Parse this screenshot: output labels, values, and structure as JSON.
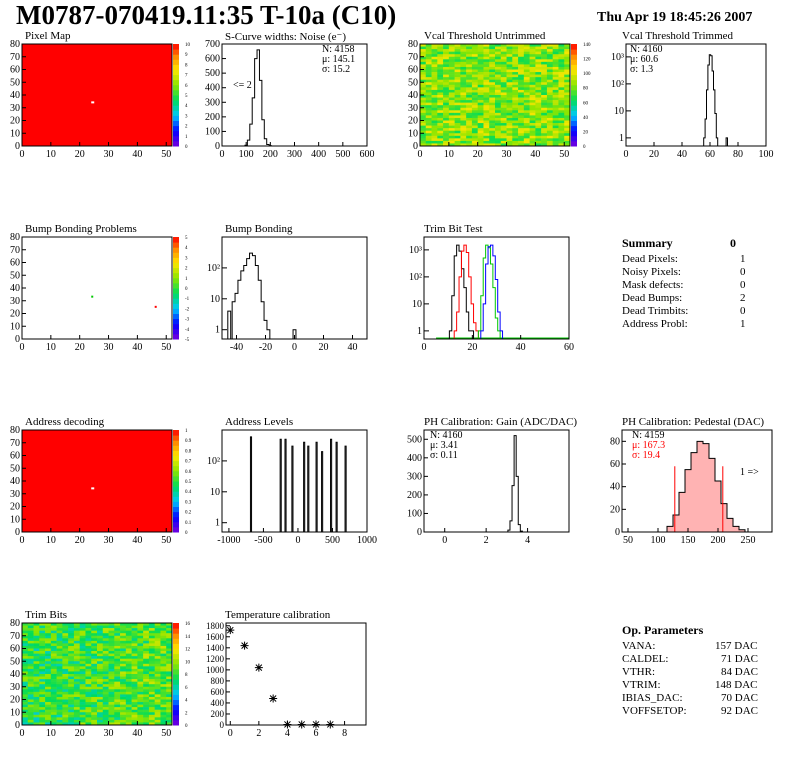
{
  "header": {
    "title": "M0787-070419.11:35 T-10a (C10)",
    "date": "Thu Apr 19 18:45:26 2007"
  },
  "panels": {
    "pixel_map": {
      "title": "Pixel Map",
      "xticks": [
        "0",
        "10",
        "20",
        "30",
        "40",
        "50"
      ],
      "yticks": [
        "0",
        "10",
        "20",
        "30",
        "40",
        "50",
        "60",
        "70",
        "80"
      ],
      "zticks": [
        "0",
        "1",
        "2",
        "3",
        "4",
        "5",
        "6",
        "7",
        "8",
        "9",
        "10"
      ]
    },
    "scurve": {
      "title": "S-Curve widths: Noise (e⁻)",
      "stats": [
        "N: 4158",
        "μ: 145.1",
        "σ: 15.2"
      ],
      "note": "<= 2",
      "xticks": [
        "0",
        "100",
        "200",
        "300",
        "400",
        "500",
        "600"
      ],
      "yticks": [
        "0",
        "100",
        "200",
        "300",
        "400",
        "500",
        "600",
        "700"
      ]
    },
    "vcal_untrimmed": {
      "title": "Vcal Threshold Untrimmed",
      "xticks": [
        "0",
        "10",
        "20",
        "30",
        "40",
        "50"
      ],
      "yticks": [
        "0",
        "10",
        "20",
        "30",
        "40",
        "50",
        "60",
        "70",
        "80"
      ],
      "zticks": [
        "0",
        "20",
        "40",
        "60",
        "80",
        "100",
        "120",
        "140"
      ]
    },
    "vcal_trimmed": {
      "title": "Vcal Threshold Trimmed",
      "stats": [
        "N: 4160",
        "μ: 60.6",
        "σ:  1.3"
      ],
      "xticks": [
        "0",
        "20",
        "40",
        "60",
        "80",
        "100"
      ],
      "yticks": [
        "1",
        "10",
        "10²",
        "10³"
      ]
    },
    "bump_problems": {
      "title": "Bump Bonding Problems",
      "xticks": [
        "0",
        "10",
        "20",
        "30",
        "40",
        "50"
      ],
      "yticks": [
        "0",
        "10",
        "20",
        "30",
        "40",
        "50",
        "60",
        "70",
        "80"
      ],
      "zticks": [
        "-5",
        "-4",
        "-3",
        "-2",
        "-1",
        "0",
        "1",
        "2",
        "3",
        "4",
        "5"
      ]
    },
    "bump_bonding": {
      "title": "Bump Bonding",
      "xticks": [
        "-40",
        "-20",
        "0",
        "20",
        "40"
      ],
      "yticks": [
        "1",
        "10",
        "10²"
      ]
    },
    "trim_bit_test": {
      "title": "Trim Bit Test",
      "xticks": [
        "0",
        "20",
        "40",
        "60"
      ],
      "yticks": [
        "1",
        "10",
        "10²",
        "10³"
      ]
    },
    "address_decoding": {
      "title": "Address decoding",
      "xticks": [
        "0",
        "10",
        "20",
        "30",
        "40",
        "50"
      ],
      "yticks": [
        "0",
        "10",
        "20",
        "30",
        "40",
        "50",
        "60",
        "70",
        "80"
      ],
      "zticks": [
        "0",
        "0.1",
        "0.2",
        "0.3",
        "0.4",
        "0.5",
        "0.6",
        "0.7",
        "0.8",
        "0.9",
        "1"
      ]
    },
    "address_levels": {
      "title": "Address Levels",
      "xticks": [
        "-1000",
        "-500",
        "0",
        "500",
        "1000"
      ],
      "yticks": [
        "1",
        "10",
        "10²"
      ]
    },
    "ph_gain": {
      "title": "PH Calibration: Gain (ADC/DAC)",
      "stats": [
        "N: 4160",
        "μ: 3.41",
        "σ: 0.11"
      ],
      "xticks": [
        "0",
        "2",
        "4"
      ],
      "yticks": [
        "0",
        "100",
        "200",
        "300",
        "400",
        "500"
      ]
    },
    "ph_pedestal": {
      "title": "PH Calibration: Pedestal (DAC)",
      "stats": [
        "N: 4159",
        "μ: 167.3",
        "σ: 19.4"
      ],
      "note": "1 =>",
      "xticks": [
        "50",
        "100",
        "150",
        "200",
        "250"
      ],
      "yticks": [
        "0",
        "20",
        "40",
        "60",
        "80"
      ]
    },
    "trim_bits": {
      "title": "Trim Bits",
      "xticks": [
        "0",
        "10",
        "20",
        "30",
        "40",
        "50"
      ],
      "yticks": [
        "0",
        "10",
        "20",
        "30",
        "40",
        "50",
        "60",
        "70",
        "80"
      ],
      "zticks": [
        "0",
        "2",
        "4",
        "6",
        "8",
        "10",
        "12",
        "14",
        "16"
      ]
    },
    "temperature": {
      "title": "Temperature calibration",
      "xticks": [
        "0",
        "2",
        "4",
        "6",
        "8"
      ],
      "yticks": [
        "0",
        "200",
        "400",
        "600",
        "800",
        "1000",
        "1200",
        "1400",
        "1600",
        "1800"
      ]
    }
  },
  "summary": {
    "title": "Summary",
    "total": "0",
    "rows": [
      {
        "label": "Dead Pixels:",
        "value": "1"
      },
      {
        "label": "Noisy Pixels:",
        "value": "0"
      },
      {
        "label": "Mask defects:",
        "value": "0"
      },
      {
        "label": "Dead Bumps:",
        "value": "2"
      },
      {
        "label": "Dead Trimbits:",
        "value": "0"
      },
      {
        "label": "Address Probl:",
        "value": "1"
      }
    ]
  },
  "op_parameters": {
    "title": "Op. Parameters",
    "rows": [
      {
        "label": "VANA:",
        "value": "157 DAC"
      },
      {
        "label": "CALDEL:",
        "value": "71 DAC"
      },
      {
        "label": "VTHR:",
        "value": "84 DAC"
      },
      {
        "label": "VTRIM:",
        "value": "148 DAC"
      },
      {
        "label": "IBIAS_DAC:",
        "value": "70 DAC"
      },
      {
        "label": "VOFFSETOP:",
        "value": "92 DAC"
      }
    ]
  },
  "colors": {
    "red": "#ff0000",
    "green": "#00c800",
    "blue": "#0000ff",
    "black": "#000000",
    "pedestal_fill": "#ff8080"
  },
  "chart_data": [
    {
      "type": "heatmap",
      "id": "pixel_map",
      "title": "Pixel Map",
      "xlim": [
        0,
        52
      ],
      "ylim": [
        0,
        80
      ],
      "zlim": [
        0,
        10
      ],
      "bulk_value": 10,
      "dead_pixel": [
        24,
        34
      ]
    },
    {
      "type": "bar",
      "id": "scurve",
      "title": "S-Curve widths: Noise (e⁻)",
      "xlim": [
        0,
        600
      ],
      "ylim": [
        0,
        700
      ],
      "x": [
        100,
        110,
        120,
        130,
        140,
        150,
        160,
        170,
        180,
        190,
        200
      ],
      "values": [
        5,
        40,
        150,
        330,
        600,
        660,
        450,
        180,
        50,
        10,
        2
      ]
    },
    {
      "type": "heatmap",
      "id": "vcal_untrimmed",
      "title": "Vcal Threshold Untrimmed",
      "xlim": [
        0,
        52
      ],
      "ylim": [
        0,
        80
      ],
      "zlim": [
        0,
        150
      ]
    },
    {
      "type": "bar",
      "id": "vcal_trimmed",
      "title": "Vcal Threshold Trimmed",
      "log_y": true,
      "xlim": [
        0,
        100
      ],
      "ylim": [
        0.5,
        3000
      ],
      "x": [
        56,
        57,
        58,
        59,
        60,
        61,
        62,
        63,
        64,
        65,
        72
      ],
      "values": [
        1,
        5,
        60,
        500,
        1200,
        1100,
        300,
        60,
        8,
        1,
        1
      ]
    },
    {
      "type": "heatmap",
      "id": "bump_problems",
      "title": "Bump Bonding Problems",
      "xlim": [
        0,
        52
      ],
      "ylim": [
        0,
        80
      ],
      "zlim": [
        -5,
        5
      ],
      "points": [
        [
          24,
          34
        ],
        [
          46,
          26
        ]
      ]
    },
    {
      "type": "bar",
      "id": "bump_bonding",
      "title": "Bump Bonding",
      "log_y": true,
      "xlim": [
        -50,
        50
      ],
      "ylim": [
        0.5,
        1000
      ],
      "x": [
        -45,
        -42,
        -40,
        -38,
        -36,
        -34,
        -32,
        -30,
        -28,
        -26,
        -24,
        -22,
        -20,
        -18,
        0
      ],
      "values": [
        4,
        8,
        15,
        40,
        80,
        120,
        200,
        300,
        250,
        120,
        40,
        8,
        2,
        1,
        1
      ]
    },
    {
      "type": "line",
      "id": "trim_bit_test",
      "title": "Trim Bit Test",
      "log_y": true,
      "xlim": [
        0,
        60
      ],
      "ylim": [
        0.5,
        3000
      ],
      "series": [
        {
          "x": [
            11,
            12,
            13,
            14,
            15,
            16,
            17,
            18,
            19,
            20
          ],
          "values": [
            1,
            20,
            600,
            1500,
            900,
            200,
            40,
            5,
            1,
            1
          ]
        },
        {
          "x": [
            13,
            14,
            15,
            16,
            17,
            18,
            19,
            20,
            21,
            22
          ],
          "values": [
            1,
            5,
            100,
            900,
            1500,
            800,
            100,
            10,
            2,
            1
          ]
        },
        {
          "x": [
            23,
            24,
            25,
            26,
            27,
            28,
            29,
            30,
            31
          ],
          "values": [
            1,
            20,
            500,
            1500,
            1200,
            300,
            40,
            3,
            1
          ]
        },
        {
          "x": [
            24,
            25,
            26,
            27,
            28,
            29,
            30,
            31,
            32
          ],
          "values": [
            1,
            10,
            300,
            1300,
            1500,
            600,
            80,
            5,
            1
          ]
        }
      ]
    },
    {
      "type": "heatmap",
      "id": "address_decoding",
      "title": "Address decoding",
      "xlim": [
        0,
        52
      ],
      "ylim": [
        0,
        80
      ],
      "zlim": [
        0,
        1
      ],
      "bulk_value": 1,
      "dead_pixel": [
        24,
        34
      ]
    },
    {
      "type": "bar",
      "id": "address_levels",
      "title": "Address Levels",
      "log_y": true,
      "xlim": [
        -1100,
        1000
      ],
      "ylim": [
        0.5,
        1000
      ],
      "x": [
        -680,
        -250,
        -180,
        -80,
        90,
        150,
        270,
        350,
        480,
        560,
        690
      ],
      "values": [
        600,
        500,
        500,
        300,
        400,
        300,
        400,
        200,
        500,
        400,
        300
      ]
    },
    {
      "type": "bar",
      "id": "ph_gain",
      "title": "PH Calibration: Gain (ADC/DAC)",
      "xlim": [
        -1,
        6
      ],
      "ylim": [
        0,
        550
      ],
      "x": [
        3.1,
        3.2,
        3.3,
        3.4,
        3.5,
        3.6,
        3.7
      ],
      "values": [
        10,
        60,
        250,
        520,
        300,
        40,
        5
      ]
    },
    {
      "type": "bar",
      "id": "ph_pedestal",
      "title": "PH Calibration: Pedestal (DAC)",
      "xlim": [
        40,
        290
      ],
      "ylim": [
        0,
        90
      ],
      "x": [
        120,
        130,
        140,
        150,
        160,
        170,
        180,
        190,
        200,
        210,
        220,
        230,
        240
      ],
      "values": [
        5,
        15,
        35,
        55,
        70,
        80,
        78,
        65,
        45,
        25,
        12,
        5,
        2
      ]
    },
    {
      "type": "heatmap",
      "id": "trim_bits",
      "title": "Trim Bits",
      "xlim": [
        0,
        52
      ],
      "ylim": [
        0,
        80
      ],
      "zlim": [
        0,
        16
      ]
    },
    {
      "type": "scatter",
      "id": "temperature",
      "title": "Temperature calibration",
      "xlim": [
        -0.3,
        9.5
      ],
      "ylim": [
        0,
        1850
      ],
      "x": [
        0,
        1,
        2,
        3,
        4,
        5,
        6,
        7
      ],
      "values": [
        1720,
        1440,
        1040,
        480,
        10,
        10,
        10,
        10
      ]
    }
  ]
}
